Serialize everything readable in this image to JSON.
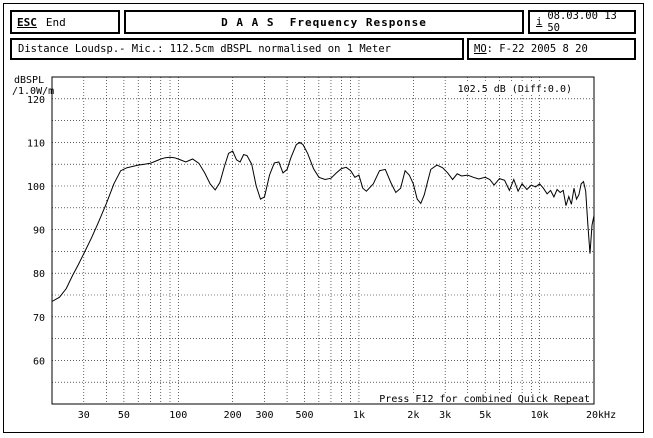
{
  "header": {
    "esc_label": "ESC",
    "end_label": "End",
    "title": "D A A S  Frequency Response",
    "info_key": "i",
    "datetime": "08.03.00 13 50"
  },
  "info": {
    "measurement": "Distance Loudsp.- Mic.: 112.5cm dBSPL normalised on 1 Meter",
    "memo_key": "MO",
    "memo_value": ": F-22 2005 8 20"
  },
  "chart_data": {
    "type": "line",
    "ylabel": "dBSPL",
    "ylabel_unit": "/1.0W/m",
    "xunit": "Hz",
    "xscale": "log",
    "xlim": [
      20,
      20000
    ],
    "ylim": [
      50,
      125
    ],
    "grid": true,
    "y_ticks": [
      60,
      70,
      80,
      90,
      100,
      110,
      120
    ],
    "x_ticks": [
      {
        "v": 30,
        "label": "30"
      },
      {
        "v": 50,
        "label": "50"
      },
      {
        "v": 100,
        "label": "100"
      },
      {
        "v": 200,
        "label": "200"
      },
      {
        "v": 300,
        "label": "300"
      },
      {
        "v": 500,
        "label": "500"
      },
      {
        "v": 1000,
        "label": "1k"
      },
      {
        "v": 2000,
        "label": "2k"
      },
      {
        "v": 3000,
        "label": "3k"
      },
      {
        "v": 5000,
        "label": "5k"
      },
      {
        "v": 10000,
        "label": "10k"
      },
      {
        "v": 20000,
        "label": "20kHz"
      }
    ],
    "annotation_level": "102.5 dB (Diff:0.0)",
    "footer_hint": "Press F12 for combined Quick Repeat",
    "series": [
      {
        "x": [
          20,
          22,
          24,
          26,
          28,
          30,
          33,
          36,
          40,
          44,
          48,
          52,
          56,
          60,
          65,
          70,
          75,
          80,
          85,
          90,
          95,
          100,
          110,
          120,
          130,
          140,
          150,
          160,
          170,
          180,
          190,
          200,
          210,
          220,
          230,
          240,
          255,
          270,
          285,
          300,
          320,
          340,
          360,
          380,
          400,
          420,
          450,
          470,
          490,
          520,
          560,
          600,
          650,
          700,
          750,
          800,
          850,
          900,
          950,
          1000,
          1050,
          1100,
          1200,
          1300,
          1400,
          1500,
          1600,
          1700,
          1800,
          1900,
          2000,
          2100,
          2200,
          2300,
          2400,
          2500,
          2700,
          2900,
          3100,
          3300,
          3500,
          3700,
          4000,
          4300,
          4600,
          5000,
          5300,
          5600,
          6000,
          6400,
          6800,
          7200,
          7600,
          8000,
          8500,
          9000,
          9500,
          10000,
          10500,
          11000,
          11500,
          12000,
          12500,
          13000,
          13500,
          14000,
          14500,
          15000,
          15500,
          16000,
          16500,
          17000,
          17500,
          18000,
          18500,
          19000,
          19500,
          20000
        ],
        "y": [
          73.5,
          74.5,
          76.5,
          79.5,
          82,
          84.5,
          88,
          91.5,
          96,
          100.5,
          103.5,
          104.2,
          104.5,
          104.8,
          105,
          105.2,
          105.7,
          106.2,
          106.5,
          106.6,
          106.5,
          106.2,
          105.5,
          106.2,
          105.2,
          103.0,
          100.5,
          99.1,
          100.8,
          104.5,
          107.5,
          108.0,
          106.0,
          105.5,
          107.2,
          107.0,
          105.0,
          100.0,
          97.0,
          97.5,
          102.5,
          105.3,
          105.5,
          103.0,
          103.8,
          106.5,
          109.5,
          110.0,
          109.5,
          107.5,
          104.0,
          102.0,
          101.5,
          101.8,
          103.0,
          104.0,
          104.3,
          103.5,
          102.0,
          102.5,
          99.5,
          98.8,
          100.5,
          103.5,
          103.8,
          100.8,
          98.5,
          99.5,
          103.5,
          102.5,
          100.5,
          97.0,
          96.0,
          98.0,
          101.0,
          103.8,
          104.8,
          104.2,
          103.0,
          101.5,
          102.8,
          102.3,
          102.5,
          102.0,
          101.6,
          102.0,
          101.5,
          100.2,
          101.7,
          101.3,
          99.0,
          101.5,
          98.8,
          100.5,
          99.2,
          100.2,
          99.8,
          100.5,
          99.5,
          98.2,
          99.0,
          97.5,
          99.2,
          98.5,
          99.0,
          95.5,
          97.6,
          95.8,
          99.5,
          97.0,
          98.0,
          100.5,
          101.0,
          98.8,
          91.0,
          84.5,
          91.0,
          93.2
        ]
      }
    ]
  }
}
